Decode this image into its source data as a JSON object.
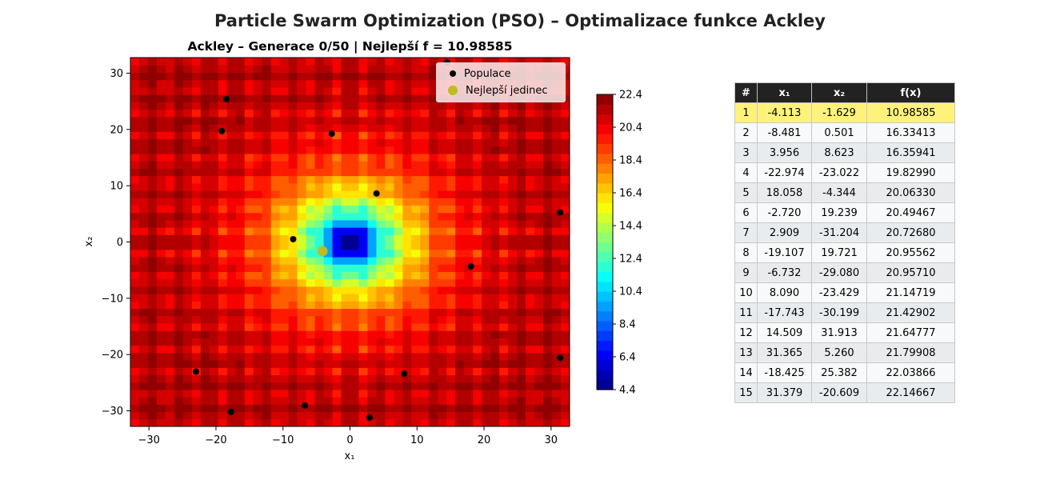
{
  "suptitle": "Particle Swarm Optimization (PSO) – Optimalizace funkce Ackley",
  "chart_data": [
    {
      "type": "heatmap",
      "title": "Ackley – Generace 0/50 | Nejlepší f = 10.98585",
      "xlabel": "x₁",
      "ylabel": "x₂",
      "xlim": [
        -32.768,
        32.768
      ],
      "ylim": [
        -32.768,
        32.768
      ],
      "xticks": [
        -30,
        -20,
        -10,
        0,
        10,
        20,
        30
      ],
      "yticks": [
        -30,
        -20,
        -10,
        0,
        10,
        20,
        30
      ],
      "function": "Ackley",
      "colormap": "jet",
      "colorbar": {
        "min": 4.4,
        "max": 22.4,
        "ticks": [
          "4.4",
          "6.4",
          "8.4",
          "10.4",
          "12.4",
          "14.4",
          "16.4",
          "18.4",
          "20.4",
          "22.4"
        ]
      },
      "legend_position": "top-right",
      "legend": {
        "population": "Populace",
        "best": "Nejlepší jedinec"
      },
      "colors": {
        "population": "#000000",
        "best": "#bcbd22"
      },
      "population": [
        [
          -4.113,
          -1.629
        ],
        [
          -8.481,
          0.501
        ],
        [
          3.956,
          8.623
        ],
        [
          -22.974,
          -23.022
        ],
        [
          18.058,
          -4.344
        ],
        [
          -2.72,
          19.239
        ],
        [
          2.909,
          -31.204
        ],
        [
          -19.107,
          19.721
        ],
        [
          -6.732,
          -29.08
        ],
        [
          8.09,
          -23.429
        ],
        [
          -17.743,
          -30.199
        ],
        [
          14.509,
          31.913
        ],
        [
          31.365,
          5.26
        ],
        [
          -18.425,
          25.382
        ],
        [
          31.379,
          -20.609
        ]
      ],
      "best": [
        -4.113,
        -1.629
      ]
    },
    {
      "type": "table",
      "columns": [
        "#",
        "x₁",
        "x₂",
        "f(x)"
      ],
      "rows": [
        [
          "1",
          "-4.113",
          "-1.629",
          "10.98585"
        ],
        [
          "2",
          "-8.481",
          "0.501",
          "16.33413"
        ],
        [
          "3",
          "3.956",
          "8.623",
          "16.35941"
        ],
        [
          "4",
          "-22.974",
          "-23.022",
          "19.82990"
        ],
        [
          "5",
          "18.058",
          "-4.344",
          "20.06330"
        ],
        [
          "6",
          "-2.720",
          "19.239",
          "20.49467"
        ],
        [
          "7",
          "2.909",
          "-31.204",
          "20.72680"
        ],
        [
          "8",
          "-19.107",
          "19.721",
          "20.95562"
        ],
        [
          "9",
          "-6.732",
          "-29.080",
          "20.95710"
        ],
        [
          "10",
          "8.090",
          "-23.429",
          "21.14719"
        ],
        [
          "11",
          "-17.743",
          "-30.199",
          "21.42902"
        ],
        [
          "12",
          "14.509",
          "31.913",
          "21.64777"
        ],
        [
          "13",
          "31.365",
          "5.260",
          "21.79908"
        ],
        [
          "14",
          "-18.425",
          "25.382",
          "22.03866"
        ],
        [
          "15",
          "31.379",
          "-20.609",
          "22.14667"
        ]
      ],
      "highlight_row": 0,
      "colors": {
        "header": "#222222",
        "highlight": "#fff27a",
        "row_even": "#f8f9fa",
        "row_odd": "#e9ecef"
      }
    }
  ]
}
